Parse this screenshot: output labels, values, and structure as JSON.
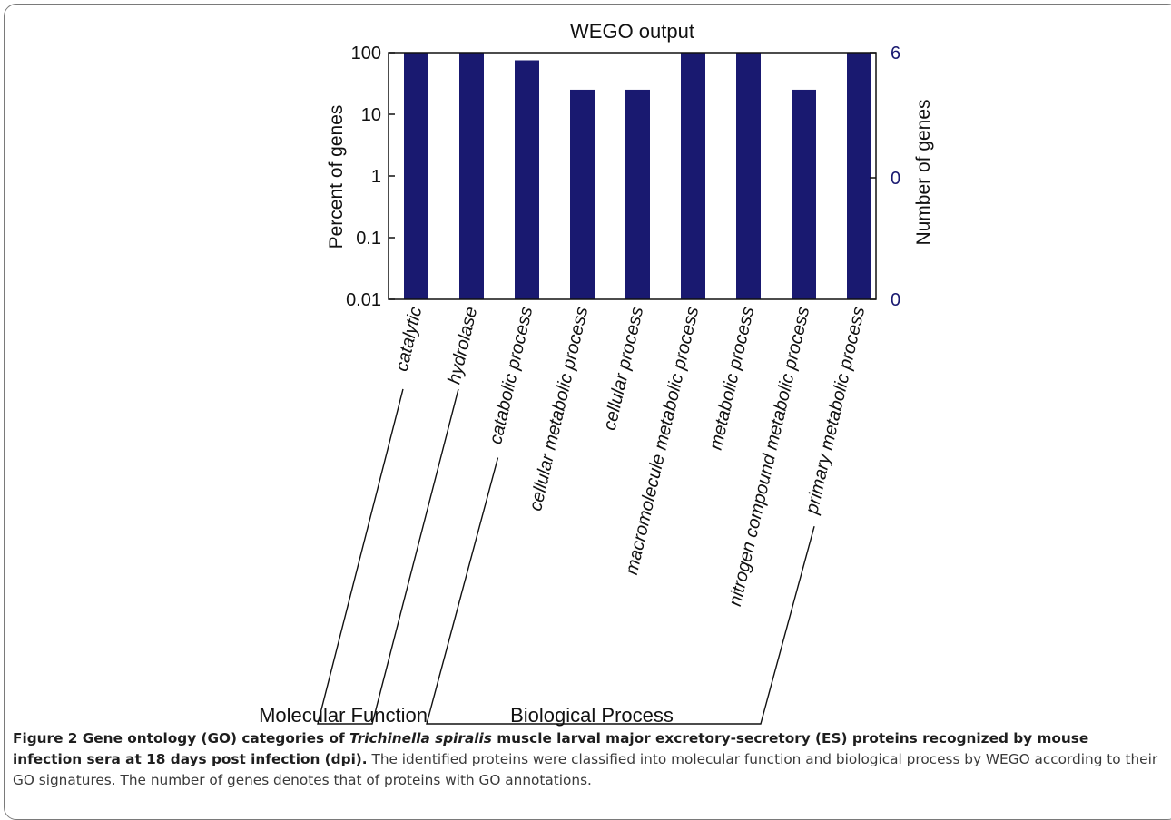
{
  "chart_data": {
    "type": "bar",
    "title": "WEGO output",
    "ylabel_left": "Percent of genes",
    "ylabel_right": "Number of genes",
    "yscale": "log",
    "ylim_left": [
      0.01,
      100
    ],
    "left_tick_labels": [
      "100",
      "10",
      "1",
      "0.1",
      "0.01"
    ],
    "right_tick_labels": [
      "6",
      "0",
      "0"
    ],
    "categories": [
      "catalytic",
      "hydrolase",
      "catabolic process",
      "cellular metabolic process",
      "cellular process",
      "macromolecule metabolic process",
      "metabolic process",
      "nitrogen compound metabolic process",
      "primary metabolic process"
    ],
    "values": [
      100,
      100,
      75,
      25,
      25,
      100,
      100,
      25,
      100
    ],
    "bar_color": "#191970",
    "groups": [
      {
        "label": "Molecular Function",
        "members": [
          "catalytic",
          "hydrolase"
        ]
      },
      {
        "label": "Biological Process",
        "members": [
          "catabolic process",
          "cellular metabolic process",
          "cellular process",
          "macromolecule metabolic process",
          "metabolic process",
          "nitrogen compound metabolic process",
          "primary metabolic process"
        ]
      }
    ]
  },
  "caption": {
    "bold_1": "Figure 2 Gene ontology (GO) categories of ",
    "italic": "Trichinella spiralis",
    "bold_2": " muscle larval major excretory-secretory (ES) proteins recognized by mouse infection sera at 18 days post infection (dpi).",
    "body": " The identified proteins were classified into molecular function and biological process by WEGO according to their GO signatures. The number of genes denotes that of proteins with GO annotations."
  }
}
